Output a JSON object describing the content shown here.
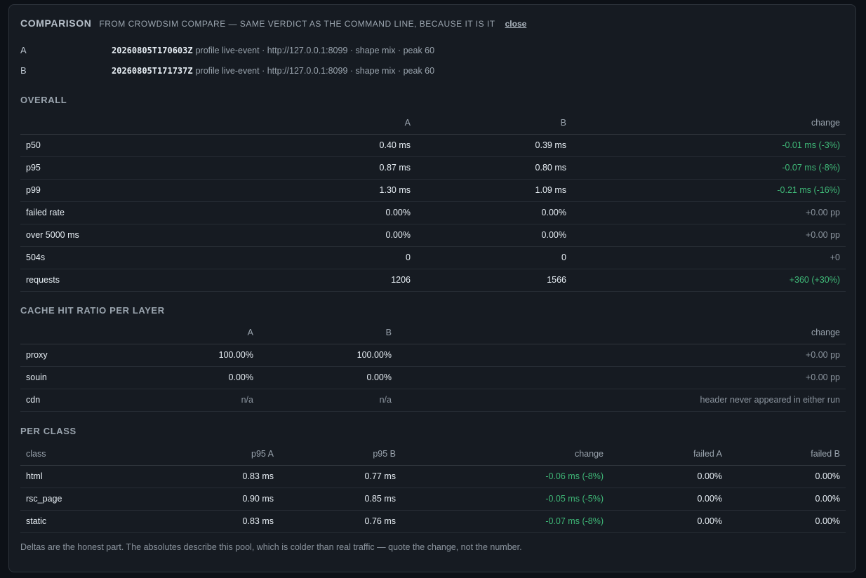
{
  "header": {
    "title": "COMPARISON",
    "subtitle": "FROM CROWDSIM COMPARE — SAME VERDICT AS THE COMMAND LINE, BECAUSE IT IS IT",
    "close_label": "close"
  },
  "runs": [
    {
      "label": "A",
      "id": "20260805T170603Z",
      "meta": "profile live-event · http://127.0.0.1:8099 · shape mix · peak 60"
    },
    {
      "label": "B",
      "id": "20260805T171737Z",
      "meta": "profile live-event · http://127.0.0.1:8099 · shape mix · peak 60"
    }
  ],
  "overall": {
    "title": "OVERALL",
    "headers": [
      "",
      "A",
      "B",
      "change"
    ],
    "rows": [
      {
        "metric": "p50",
        "a": "0.40 ms",
        "b": "0.39 ms",
        "change": "-0.01 ms (-3%)",
        "tone": "good"
      },
      {
        "metric": "p95",
        "a": "0.87 ms",
        "b": "0.80 ms",
        "change": "-0.07 ms (-8%)",
        "tone": "good"
      },
      {
        "metric": "p99",
        "a": "1.30 ms",
        "b": "1.09 ms",
        "change": "-0.21 ms (-16%)",
        "tone": "good"
      },
      {
        "metric": "failed rate",
        "a": "0.00%",
        "b": "0.00%",
        "change": "+0.00 pp",
        "tone": "neutral"
      },
      {
        "metric": "over 5000 ms",
        "a": "0.00%",
        "b": "0.00%",
        "change": "+0.00 pp",
        "tone": "neutral"
      },
      {
        "metric": "504s",
        "a": "0",
        "b": "0",
        "change": "+0",
        "tone": "neutral"
      },
      {
        "metric": "requests",
        "a": "1206",
        "b": "1566",
        "change": "+360 (+30%)",
        "tone": "good"
      }
    ]
  },
  "cache": {
    "title": "CACHE HIT RATIO PER LAYER",
    "headers": [
      "",
      "A",
      "B",
      "change"
    ],
    "rows": [
      {
        "layer": "proxy",
        "a": "100.00%",
        "b": "100.00%",
        "change": "+0.00 pp",
        "tone": "neutral"
      },
      {
        "layer": "souin",
        "a": "0.00%",
        "b": "0.00%",
        "change": "+0.00 pp",
        "tone": "neutral"
      },
      {
        "layer": "cdn",
        "a": "n/a",
        "b": "n/a",
        "change": "header never appeared in either run",
        "tone": "neutral"
      }
    ]
  },
  "per_class": {
    "title": "PER CLASS",
    "headers": [
      "class",
      "p95 A",
      "p95 B",
      "change",
      "failed A",
      "failed B"
    ],
    "rows": [
      {
        "cls": "html",
        "p95a": "0.83 ms",
        "p95b": "0.77 ms",
        "change": "-0.06 ms (-8%)",
        "fa": "0.00%",
        "fb": "0.00%",
        "tone": "good"
      },
      {
        "cls": "rsc_page",
        "p95a": "0.90 ms",
        "p95b": "0.85 ms",
        "change": "-0.05 ms (-5%)",
        "fa": "0.00%",
        "fb": "0.00%",
        "tone": "good"
      },
      {
        "cls": "static",
        "p95a": "0.83 ms",
        "p95b": "0.76 ms",
        "change": "-0.07 ms (-8%)",
        "fa": "0.00%",
        "fb": "0.00%",
        "tone": "good"
      }
    ]
  },
  "footnote": "Deltas are the honest part. The absolutes describe this pool, which is colder than real traffic — quote the change, not the number.",
  "colors": {
    "background": "#0d1117",
    "panel": "#161b22",
    "good": "#3fb978",
    "neutral": "#8b949e"
  }
}
